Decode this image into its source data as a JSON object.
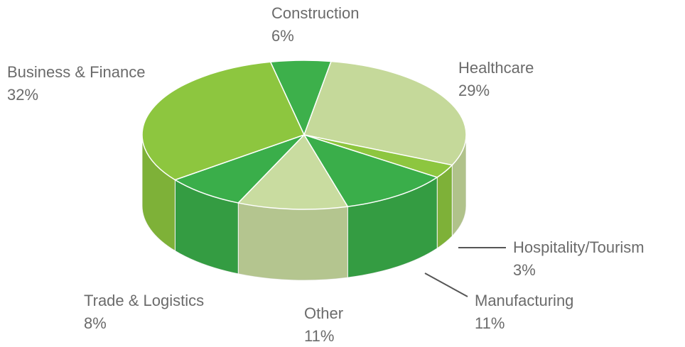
{
  "chart_data": {
    "type": "pie",
    "categories": [
      "Construction",
      "Healthcare",
      "Hospitality/Tourism",
      "Manufacturing",
      "Other",
      "Trade & Logistics",
      "Business & Finance"
    ],
    "values": [
      6,
      29,
      3,
      11,
      11,
      8,
      32
    ],
    "value_labels": [
      "6%",
      "29%",
      "3%",
      "11%",
      "11%",
      "8%",
      "32%"
    ],
    "colors": [
      "#3db04b",
      "#c5d99a",
      "#8dc63f",
      "#3aae4a",
      "#c9dca0",
      "#3aae4a",
      "#8dc63f"
    ]
  }
}
